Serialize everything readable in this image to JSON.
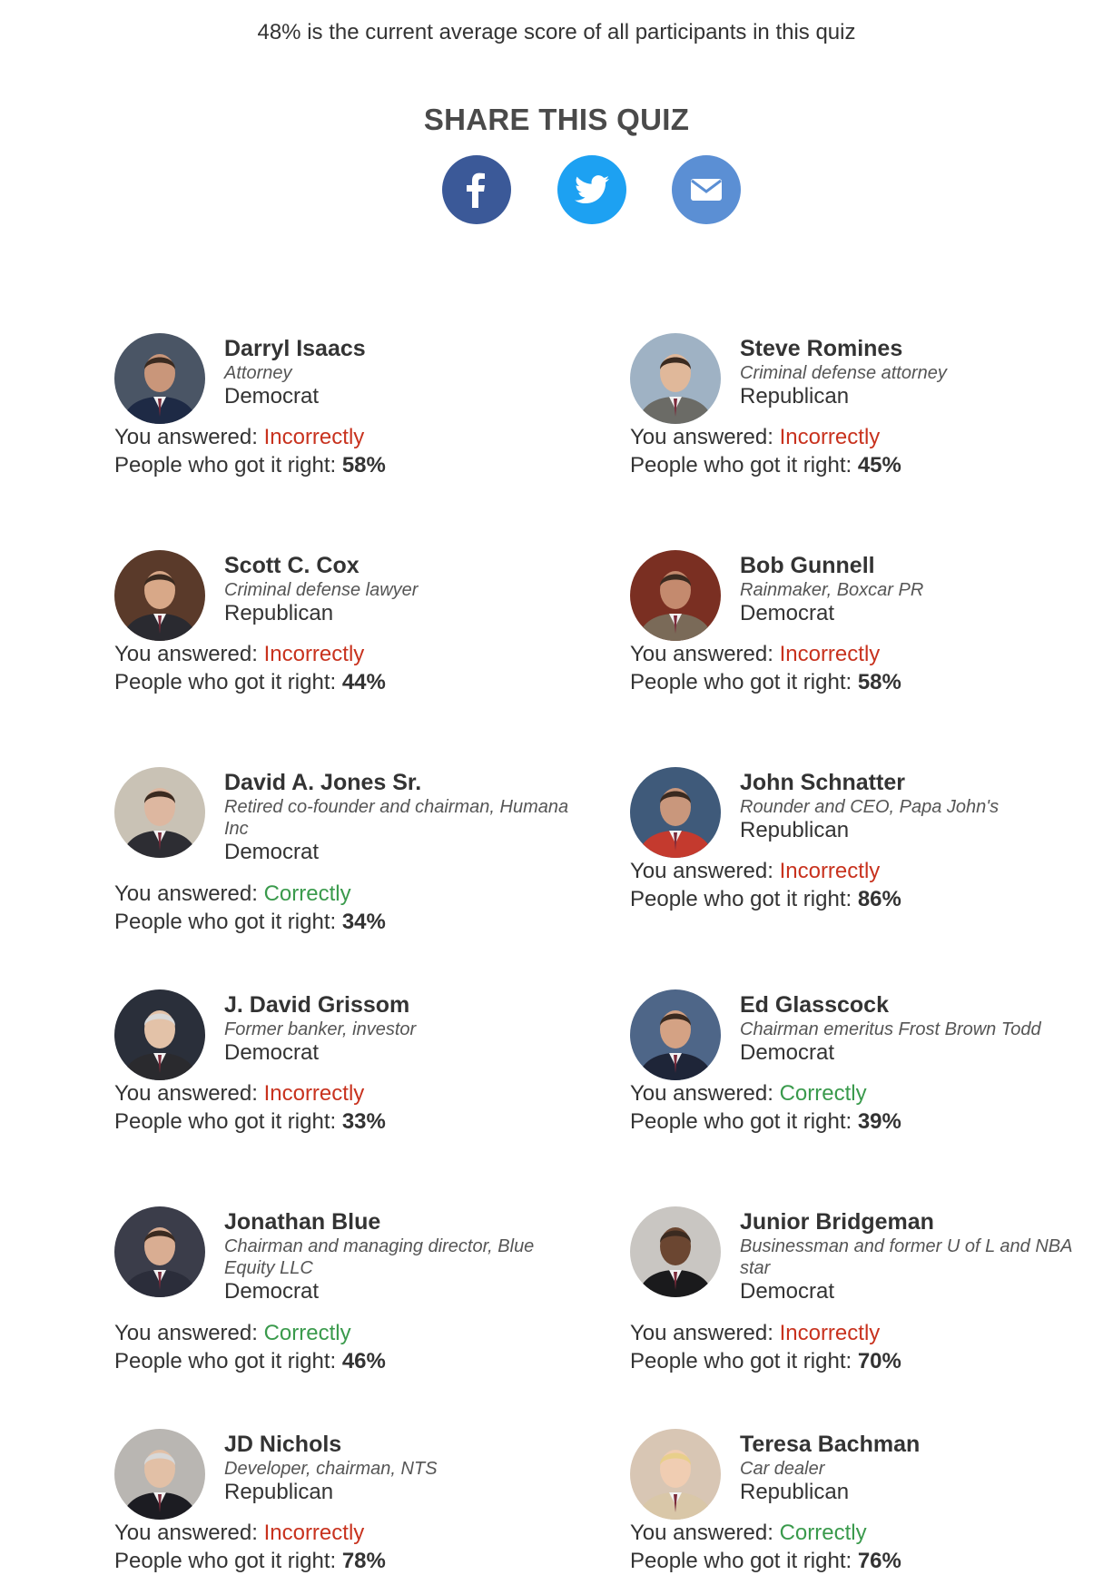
{
  "average_text": "48% is the current average score of all participants in this quiz",
  "share": {
    "title": "SHARE THIS QUIZ",
    "buttons": [
      {
        "name": "facebook",
        "icon": "facebook-icon",
        "color": "#3b5998"
      },
      {
        "name": "twitter",
        "icon": "twitter-icon",
        "color": "#1da1f2"
      },
      {
        "name": "email",
        "icon": "email-icon",
        "color": "#5b8fd4"
      }
    ]
  },
  "labels": {
    "answered": "You answered: ",
    "right": "People who got it right: ",
    "incorrect": "Incorrectly",
    "correct": "Correctly"
  },
  "colors": {
    "incorrect": "#c8321e",
    "correct": "#3a9a4c"
  },
  "people": [
    {
      "name": "Darryl Isaacs",
      "title": "Attorney",
      "party": "Democrat",
      "answer": "Incorrectly",
      "right": "58%"
    },
    {
      "name": "Steve Romines",
      "title": "Criminal defense attorney",
      "party": "Republican",
      "answer": "Incorrectly",
      "right": "45%"
    },
    {
      "name": "Scott C. Cox",
      "title": "Criminal defense lawyer",
      "party": "Republican",
      "answer": "Incorrectly",
      "right": "44%"
    },
    {
      "name": "Bob Gunnell",
      "title": "Rainmaker, Boxcar PR",
      "party": "Democrat",
      "answer": "Incorrectly",
      "right": "58%"
    },
    {
      "name": "David A. Jones Sr.",
      "title": "Retired co-founder and chairman, Humana Inc",
      "party": "Democrat",
      "answer": "Correctly",
      "right": "34%"
    },
    {
      "name": "John Schnatter",
      "title": "Rounder and CEO, Papa John's",
      "party": "Republican",
      "answer": "Incorrectly",
      "right": "86%"
    },
    {
      "name": "J. David Grissom",
      "title": "Former banker, investor",
      "party": "Democrat",
      "answer": "Incorrectly",
      "right": "33%"
    },
    {
      "name": "Ed Glasscock",
      "title": "Chairman emeritus Frost Brown Todd",
      "party": "Democrat",
      "answer": "Correctly",
      "right": "39%"
    },
    {
      "name": "Jonathan Blue",
      "title": "Chairman and managing director, Blue Equity LLC",
      "party": "Democrat",
      "answer": "Correctly",
      "right": "46%"
    },
    {
      "name": "Junior Bridgeman",
      "title": "Businessman and former U of L and NBA star",
      "party": "Democrat",
      "answer": "Incorrectly",
      "right": "70%"
    },
    {
      "name": "JD Nichols",
      "title": "Developer, chairman, NTS",
      "party": "Republican",
      "answer": "Incorrectly",
      "right": "78%"
    },
    {
      "name": "Teresa Bachman",
      "title": "Car dealer",
      "party": "Republican",
      "answer": "Correctly",
      "right": "76%"
    }
  ]
}
